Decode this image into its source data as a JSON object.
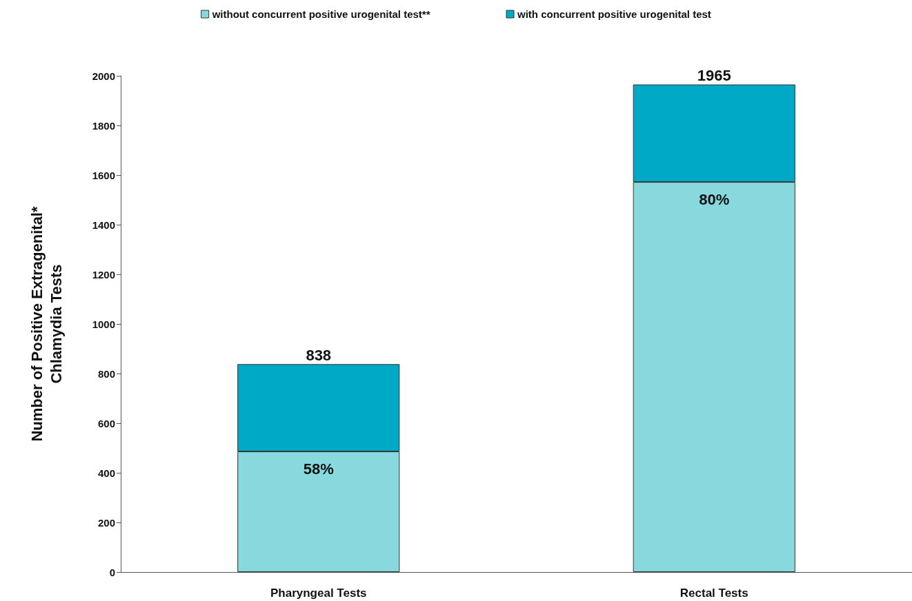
{
  "chart_data": {
    "type": "bar",
    "stacked": true,
    "categories": [
      "Pharyngeal Tests",
      "Rectal Tests"
    ],
    "series": [
      {
        "name": "without concurrent positive urogenital test**",
        "color": "#88d9de",
        "values": [
          486,
          1572
        ]
      },
      {
        "name": "with concurrent positive urogenital test",
        "color": "#00a9c6",
        "values": [
          352,
          393
        ]
      }
    ],
    "totals": [
      "838",
      "1965"
    ],
    "annotations": [
      {
        "text": "58%",
        "x": "Pharyngeal Tests",
        "y": 486
      },
      {
        "text": "80%",
        "x": "Rectal Tests",
        "y": 1572
      }
    ],
    "ylabel": "Number of Positive Extragenital* Chlamydia Tests",
    "ylim": [
      0,
      2000
    ],
    "yticks": [
      0,
      200,
      400,
      600,
      800,
      1000,
      1200,
      1400,
      1600,
      1800,
      2000
    ],
    "grid": false,
    "legend": "top"
  }
}
